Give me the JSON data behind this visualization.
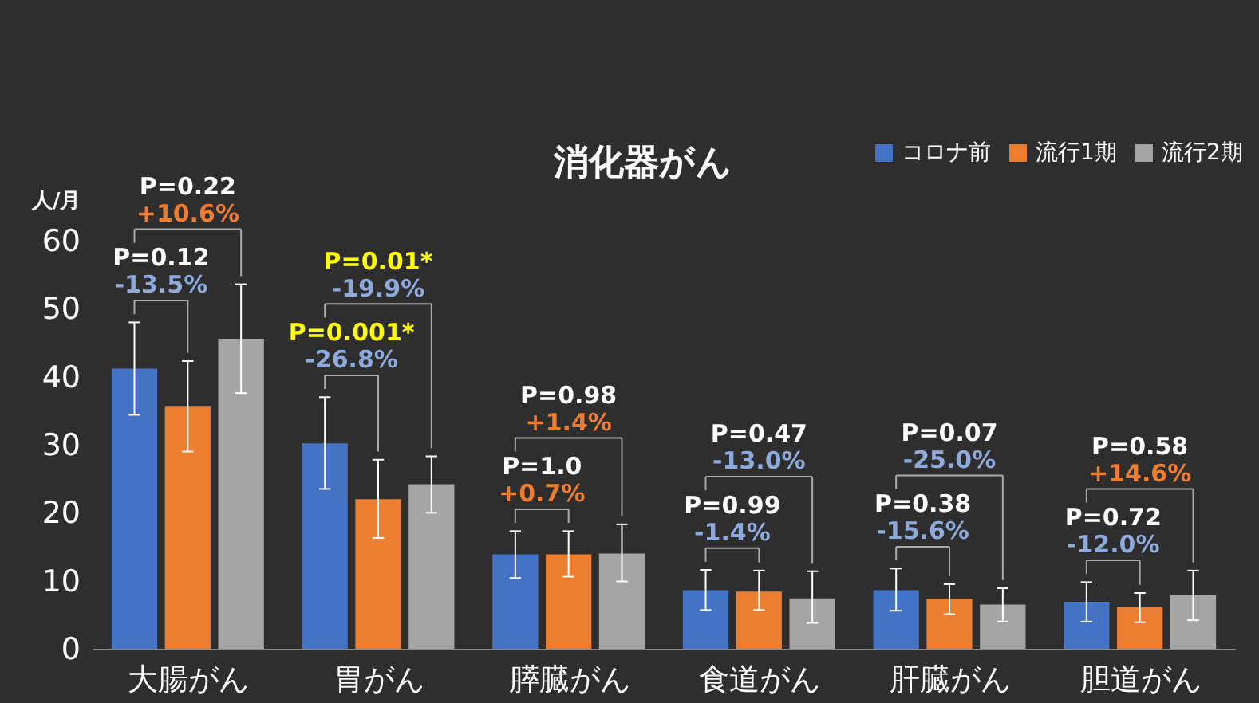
{
  "chart_data": {
    "type": "bar",
    "title": "消化器がん",
    "ylabel": "人/月",
    "categories": [
      "大腸がん",
      "胃がん",
      "膵臓がん",
      "食道がん",
      "肝臓がん",
      "胆道がん"
    ],
    "series": [
      {
        "name": "コロナ前",
        "color": "#4472c4",
        "values": [
          41.2,
          30.2,
          13.9,
          8.6,
          8.6,
          6.9
        ],
        "errors": [
          [
            34.4,
            48.0
          ],
          [
            23.5,
            37.0
          ],
          [
            10.4,
            17.3
          ],
          [
            5.7,
            11.6
          ],
          [
            5.6,
            11.8
          ],
          [
            4.0,
            9.8
          ]
        ]
      },
      {
        "name": "流行1期",
        "color": "#ed7d31",
        "values": [
          35.6,
          22.0,
          13.9,
          8.4,
          7.3,
          6.1
        ],
        "errors": [
          [
            29.0,
            42.3
          ],
          [
            16.3,
            27.8
          ],
          [
            10.6,
            17.3
          ],
          [
            5.7,
            11.5
          ],
          [
            5.1,
            9.5
          ],
          [
            3.9,
            8.2
          ]
        ]
      },
      {
        "name": "流行2期",
        "color": "#a5a5a5",
        "values": [
          45.6,
          24.2,
          14.0,
          7.4,
          6.5,
          7.9
        ],
        "errors": [
          [
            37.6,
            53.6
          ],
          [
            20.0,
            28.3
          ],
          [
            9.9,
            18.3
          ],
          [
            3.8,
            11.4
          ],
          [
            4.0,
            8.9
          ],
          [
            4.2,
            11.5
          ]
        ]
      }
    ],
    "ylim": [
      0,
      60
    ],
    "yticks": [
      0,
      10,
      20,
      30,
      40,
      50,
      60
    ],
    "grid": false,
    "legend": "top right",
    "annotations": [
      "P=0.22",
      "+10.6%",
      "P=0.12",
      "-13.5%",
      "P=0.01*",
      "-19.9%",
      "P=0.001*",
      "-26.8%",
      "P=0.98",
      "+1.4%",
      "P=1.0",
      "+0.7%",
      "P=0.47",
      "-13.0%",
      "P=0.99",
      "-1.4%",
      "P=0.07",
      "-25.0%",
      "P=0.38",
      "-15.6%",
      "P=0.58",
      "+14.6%",
      "P=0.72",
      "-12.0%"
    ]
  }
}
